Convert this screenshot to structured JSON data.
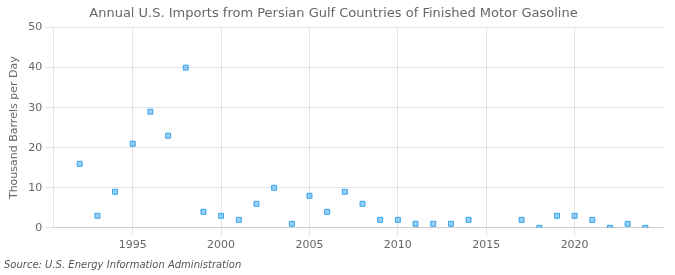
{
  "chart_data": {
    "type": "scatter",
    "title": "Annual U.S. Imports from Persian Gulf Countries of Finished Motor Gasoline",
    "ylabel": "Thousand Barrels per Day",
    "source": "Source: U.S. Energy Information Administration",
    "x": [
      1992,
      1993,
      1994,
      1995,
      1996,
      1997,
      1998,
      1999,
      2000,
      2001,
      2002,
      2003,
      2004,
      2005,
      2006,
      2007,
      2008,
      2009,
      2010,
      2011,
      2012,
      2013,
      2014,
      2017,
      2018,
      2019,
      2020,
      2021,
      2022,
      2023,
      2024
    ],
    "values": [
      16,
      3,
      9,
      21,
      29,
      23,
      40,
      4,
      3,
      2,
      6,
      10,
      1,
      8,
      4,
      9,
      6,
      2,
      2,
      1,
      1,
      1,
      2,
      2,
      0,
      3,
      3,
      2,
      0,
      1,
      0
    ],
    "marker": "square",
    "xlim": [
      1990.5,
      2025
    ],
    "xticks": [
      1995,
      2000,
      2005,
      2010,
      2015,
      2020
    ],
    "ylim": [
      0,
      50
    ],
    "yticks": [
      0,
      10,
      20,
      30,
      40,
      50
    ],
    "grid": true
  }
}
